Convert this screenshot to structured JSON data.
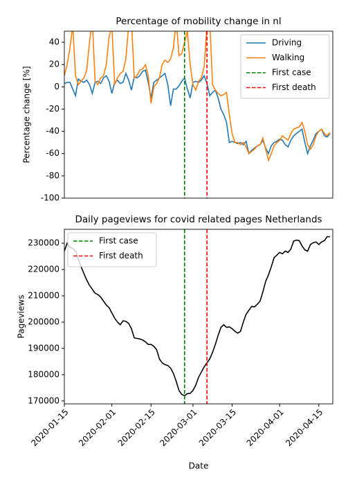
{
  "chart_data": [
    {
      "type": "line",
      "title": "Percentage of mobility change in nl",
      "y_label": "Percentage change [%]",
      "x": [
        "2020-01-15",
        "2020-01-16",
        "2020-01-17",
        "2020-01-18",
        "2020-01-19",
        "2020-01-20",
        "2020-01-21",
        "2020-01-22",
        "2020-01-23",
        "2020-01-24",
        "2020-01-25",
        "2020-01-26",
        "2020-01-27",
        "2020-01-28",
        "2020-01-29",
        "2020-01-30",
        "2020-01-31",
        "2020-02-01",
        "2020-02-02",
        "2020-02-03",
        "2020-02-04",
        "2020-02-05",
        "2020-02-06",
        "2020-02-07",
        "2020-02-08",
        "2020-02-09",
        "2020-02-10",
        "2020-02-11",
        "2020-02-12",
        "2020-02-13",
        "2020-02-14",
        "2020-02-15",
        "2020-02-16",
        "2020-02-17",
        "2020-02-18",
        "2020-02-19",
        "2020-02-20",
        "2020-02-21",
        "2020-02-22",
        "2020-02-23",
        "2020-02-24",
        "2020-02-25",
        "2020-02-26",
        "2020-02-27",
        "2020-02-28",
        "2020-02-29",
        "2020-03-01",
        "2020-03-02",
        "2020-03-03",
        "2020-03-04",
        "2020-03-05",
        "2020-03-06",
        "2020-03-07",
        "2020-03-08",
        "2020-03-09",
        "2020-03-10",
        "2020-03-11",
        "2020-03-12",
        "2020-03-13",
        "2020-03-14",
        "2020-03-15",
        "2020-03-16",
        "2020-03-17",
        "2020-03-18",
        "2020-03-19",
        "2020-03-20",
        "2020-03-21",
        "2020-03-22",
        "2020-03-23",
        "2020-03-24",
        "2020-03-25",
        "2020-03-26",
        "2020-03-27",
        "2020-03-28",
        "2020-03-29",
        "2020-03-30",
        "2020-03-31",
        "2020-04-01",
        "2020-04-02",
        "2020-04-03",
        "2020-04-04",
        "2020-04-05",
        "2020-04-06",
        "2020-04-07",
        "2020-04-08",
        "2020-04-09",
        "2020-04-10",
        "2020-04-11",
        "2020-04-12",
        "2020-04-13",
        "2020-04-14",
        "2020-04-15",
        "2020-04-16",
        "2020-04-17",
        "2020-04-18",
        "2020-04-19"
      ],
      "series": [
        {
          "name": "Driving",
          "color": "#1f77b4",
          "values": [
            3,
            4,
            4,
            -2,
            -8,
            7,
            5,
            4,
            6,
            2,
            -6,
            4,
            5,
            3,
            8,
            10,
            5,
            -6,
            4,
            6,
            3,
            4,
            12,
            6,
            -3,
            9,
            8,
            10,
            14,
            15,
            4,
            -10,
            4,
            6,
            8,
            10,
            12,
            2,
            -17,
            -2,
            -2,
            1,
            5,
            8,
            -2,
            -10,
            4,
            5,
            4,
            6,
            10,
            3,
            -8,
            -5,
            -3,
            -10,
            -20,
            -25,
            -32,
            -50,
            -49,
            -50,
            -51,
            -50,
            -52,
            -49,
            -60,
            -57,
            -55,
            -53,
            -52,
            -48,
            -55,
            -60,
            -53,
            -50,
            -49,
            -47,
            -48,
            -52,
            -54,
            -48,
            -44,
            -42,
            -40,
            -38,
            -50,
            -60,
            -53,
            -48,
            -42,
            -40,
            -38,
            -44,
            -45,
            -42
          ]
        },
        {
          "name": "Walking",
          "color": "#ff7f0e",
          "values": [
            10,
            20,
            35,
            55,
            10,
            2,
            5,
            8,
            15,
            40,
            60,
            5,
            2,
            8,
            10,
            20,
            45,
            55,
            2,
            8,
            12,
            14,
            25,
            55,
            60,
            8,
            10,
            15,
            16,
            20,
            10,
            -15,
            0,
            3,
            8,
            20,
            24,
            22,
            25,
            35,
            60,
            28,
            30,
            40,
            50,
            20,
            2,
            -3,
            5,
            8,
            18,
            55,
            60,
            2,
            -3,
            -6,
            -8,
            -7,
            -5,
            -25,
            -42,
            -50,
            -50,
            -52,
            -50,
            -54,
            -60,
            -58,
            -56,
            -53,
            -52,
            -46,
            -56,
            -66,
            -60,
            -53,
            -50,
            -48,
            -44,
            -46,
            -48,
            -42,
            -38,
            -37,
            -36,
            -32,
            -40,
            -52,
            -56,
            -52,
            -44,
            -40,
            -38,
            -42,
            -44,
            -41
          ]
        }
      ],
      "vlines": [
        {
          "name": "First case",
          "x": "2020-02-27",
          "color": "green"
        },
        {
          "name": "First death",
          "x": "2020-03-06",
          "color": "red"
        }
      ],
      "xlim": [
        "2020-01-15",
        "2020-04-20"
      ],
      "ylim": [
        -100,
        50
      ],
      "yticks": [
        -100,
        -80,
        -60,
        -40,
        -20,
        0,
        20,
        40
      ],
      "legend": "upper right"
    },
    {
      "type": "line",
      "title": "Daily pageviews for covid related pages Netherlands",
      "y_label": "Pageviews",
      "x_label": "Date",
      "x": [
        "2020-01-15",
        "2020-01-16",
        "2020-01-17",
        "2020-01-18",
        "2020-01-19",
        "2020-01-20",
        "2020-01-21",
        "2020-01-22",
        "2020-01-23",
        "2020-01-24",
        "2020-01-25",
        "2020-01-26",
        "2020-01-27",
        "2020-01-28",
        "2020-01-29",
        "2020-01-30",
        "2020-01-31",
        "2020-02-01",
        "2020-02-02",
        "2020-02-03",
        "2020-02-04",
        "2020-02-05",
        "2020-02-06",
        "2020-02-07",
        "2020-02-08",
        "2020-02-09",
        "2020-02-10",
        "2020-02-11",
        "2020-02-12",
        "2020-02-13",
        "2020-02-14",
        "2020-02-15",
        "2020-02-16",
        "2020-02-17",
        "2020-02-18",
        "2020-02-19",
        "2020-02-20",
        "2020-02-21",
        "2020-02-22",
        "2020-02-23",
        "2020-02-24",
        "2020-02-25",
        "2020-02-26",
        "2020-02-27",
        "2020-02-28",
        "2020-02-29",
        "2020-03-01",
        "2020-03-02",
        "2020-03-03",
        "2020-03-04",
        "2020-03-05",
        "2020-03-06",
        "2020-03-07",
        "2020-03-08",
        "2020-03-09",
        "2020-03-10",
        "2020-03-11",
        "2020-03-12",
        "2020-03-13",
        "2020-03-14",
        "2020-03-15",
        "2020-03-16",
        "2020-03-17",
        "2020-03-18",
        "2020-03-19",
        "2020-03-20",
        "2020-03-21",
        "2020-03-22",
        "2020-03-23",
        "2020-03-24",
        "2020-03-25",
        "2020-03-26",
        "2020-03-27",
        "2020-03-28",
        "2020-03-29",
        "2020-03-30",
        "2020-03-31",
        "2020-04-01",
        "2020-04-02",
        "2020-04-03",
        "2020-04-04",
        "2020-04-05",
        "2020-04-06",
        "2020-04-07",
        "2020-04-08",
        "2020-04-09",
        "2020-04-10",
        "2020-04-11",
        "2020-04-12",
        "2020-04-13",
        "2020-04-14",
        "2020-04-15",
        "2020-04-16",
        "2020-04-17",
        "2020-04-18",
        "2020-04-19"
      ],
      "series": [
        {
          "color": "#000000",
          "values": [
            227000,
            230000,
            228500,
            228000,
            227000,
            224000,
            221000,
            218500,
            216000,
            214000,
            212500,
            211000,
            210500,
            209500,
            208000,
            206500,
            205500,
            203500,
            201500,
            200000,
            199000,
            200500,
            200300,
            199500,
            197500,
            194000,
            193800,
            193600,
            193200,
            192500,
            191500,
            191500,
            190800,
            189500,
            186000,
            184500,
            183800,
            183500,
            182500,
            180500,
            177500,
            174000,
            172500,
            172000,
            172800,
            172900,
            174000,
            176000,
            179000,
            181000,
            183000,
            184500,
            186000,
            188500,
            191500,
            195000,
            198000,
            199000,
            198000,
            198200,
            197500,
            196500,
            195800,
            196500,
            200000,
            203000,
            204500,
            206000,
            205800,
            206800,
            208000,
            211500,
            215500,
            218000,
            221000,
            224500,
            225500,
            226500,
            226000,
            227000,
            226500,
            227800,
            230800,
            231200,
            231000,
            229000,
            227500,
            227000,
            229500,
            230200,
            230500,
            229500,
            230500,
            231000,
            232500,
            232500
          ]
        }
      ],
      "vlines": [
        {
          "name": "First case",
          "x": "2020-02-27",
          "color": "green"
        },
        {
          "name": "First death",
          "x": "2020-03-06",
          "color": "red"
        }
      ],
      "xlim": [
        "2020-01-15",
        "2020-04-20"
      ],
      "xticks": [
        "2020-01-15",
        "2020-02-01",
        "2020-02-15",
        "2020-03-01",
        "2020-03-15",
        "2020-04-01",
        "2020-04-15"
      ],
      "ylim": [
        168900,
        235300
      ],
      "yticks": [
        170000,
        180000,
        190000,
        200000,
        210000,
        220000,
        230000
      ],
      "legend": "upper left"
    }
  ]
}
